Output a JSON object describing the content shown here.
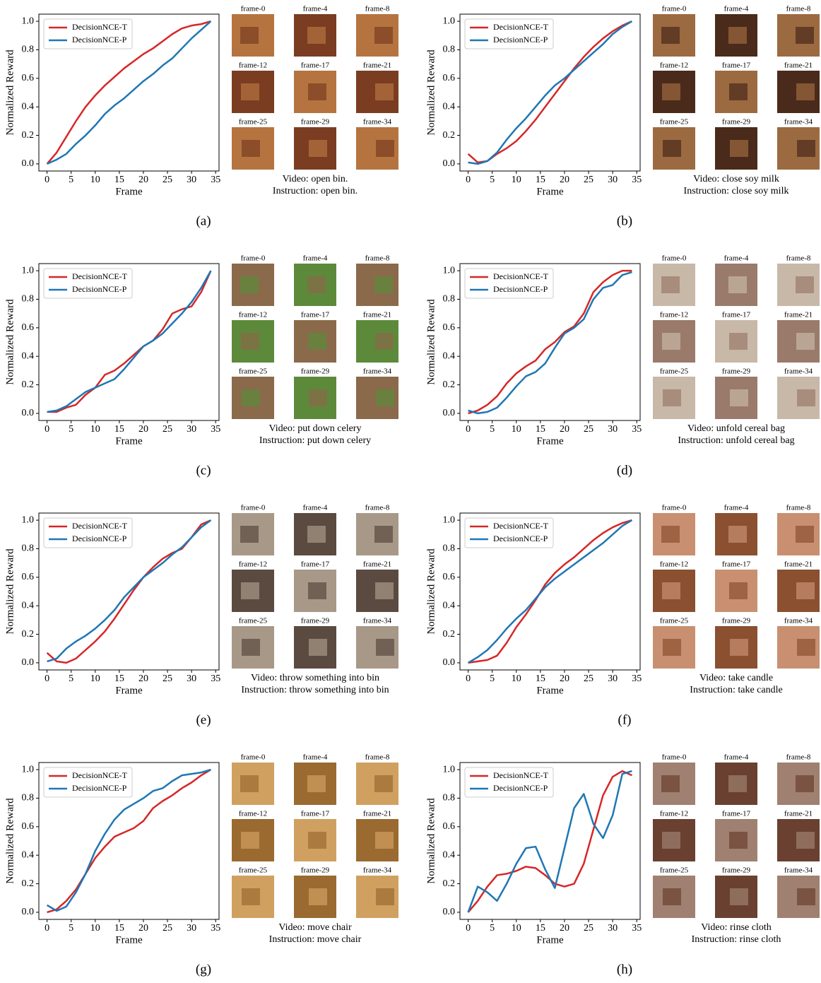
{
  "chart_data": [
    {
      "type": "line",
      "panel_label": "(a)",
      "x_label": "Frame",
      "y_label": "Normalized Reward",
      "x": [
        0,
        2,
        4,
        6,
        8,
        10,
        12,
        14,
        16,
        18,
        20,
        22,
        24,
        26,
        28,
        30,
        32,
        34
      ],
      "series": [
        {
          "name": "DecisionNCE-T",
          "color": "#d62728",
          "values": [
            0,
            0.08,
            0.19,
            0.3,
            0.4,
            0.48,
            0.55,
            0.61,
            0.67,
            0.72,
            0.77,
            0.81,
            0.86,
            0.91,
            0.95,
            0.97,
            0.98,
            1.0
          ]
        },
        {
          "name": "DecisionNCE-P",
          "color": "#1f77b4",
          "values": [
            0,
            0.03,
            0.07,
            0.14,
            0.2,
            0.27,
            0.35,
            0.41,
            0.46,
            0.52,
            0.58,
            0.63,
            0.69,
            0.74,
            0.81,
            0.88,
            0.94,
            1.0
          ]
        }
      ],
      "xlim": [
        -1.7,
        35.7
      ],
      "xticks": [
        0,
        5,
        10,
        15,
        20,
        25,
        30,
        35
      ],
      "ylim": [
        -0.05,
        1.05
      ],
      "yticks": [
        {
          "value": 0,
          "label": "0.0"
        },
        0.2,
        0.4,
        0.6,
        0.8,
        {
          "value": 1,
          "label": "1.0"
        }
      ],
      "legend": "upper left",
      "frame_labels": [
        "frame-0",
        "frame-4",
        "frame-8",
        "frame-12",
        "frame-17",
        "frame-21",
        "frame-25",
        "frame-29",
        "frame-34"
      ],
      "caption_video": "Video: open bin.",
      "caption_instruction": "Instruction: open bin."
    },
    {
      "type": "line",
      "panel_label": "(b)",
      "x_label": "Frame",
      "y_label": "Normalized Reward",
      "x": [
        0,
        2,
        4,
        6,
        8,
        10,
        12,
        14,
        16,
        18,
        20,
        22,
        24,
        26,
        28,
        30,
        32,
        34
      ],
      "series": [
        {
          "name": "DecisionNCE-T",
          "color": "#d62728",
          "values": [
            0.07,
            0.01,
            0.02,
            0.07,
            0.11,
            0.16,
            0.23,
            0.31,
            0.4,
            0.49,
            0.58,
            0.67,
            0.75,
            0.82,
            0.88,
            0.93,
            0.97,
            1.0
          ]
        },
        {
          "name": "DecisionNCE-P",
          "color": "#1f77b4",
          "values": [
            0.01,
            0.0,
            0.02,
            0.08,
            0.17,
            0.25,
            0.32,
            0.4,
            0.48,
            0.55,
            0.6,
            0.66,
            0.72,
            0.78,
            0.84,
            0.91,
            0.96,
            1.0
          ]
        }
      ],
      "xlim": [
        -1.7,
        35.7
      ],
      "xticks": [
        0,
        5,
        10,
        15,
        20,
        25,
        30,
        35
      ],
      "ylim": [
        -0.05,
        1.05
      ],
      "yticks": [
        {
          "value": 0,
          "label": "0.0"
        },
        0.2,
        0.4,
        0.6,
        0.8,
        {
          "value": 1,
          "label": "1.0"
        }
      ],
      "legend": "upper left",
      "frame_labels": [
        "frame-0",
        "frame-4",
        "frame-8",
        "frame-12",
        "frame-17",
        "frame-21",
        "frame-25",
        "frame-29",
        "frame-34"
      ],
      "caption_video": "Video: close soy milk",
      "caption_instruction": "Instruction: close soy milk"
    },
    {
      "type": "line",
      "panel_label": "(c)",
      "x_label": "Frame",
      "y_label": "Normalized Reward",
      "x": [
        0,
        2,
        4,
        6,
        8,
        10,
        12,
        14,
        16,
        18,
        20,
        22,
        24,
        26,
        28,
        30,
        32,
        34
      ],
      "series": [
        {
          "name": "DecisionNCE-T",
          "color": "#d62728",
          "values": [
            0.01,
            0.01,
            0.04,
            0.06,
            0.13,
            0.18,
            0.27,
            0.3,
            0.35,
            0.41,
            0.47,
            0.51,
            0.59,
            0.7,
            0.73,
            0.75,
            0.85,
            1.0
          ]
        },
        {
          "name": "DecisionNCE-P",
          "color": "#1f77b4",
          "values": [
            0.01,
            0.02,
            0.05,
            0.1,
            0.15,
            0.18,
            0.21,
            0.24,
            0.31,
            0.39,
            0.47,
            0.51,
            0.56,
            0.63,
            0.7,
            0.78,
            0.88,
            1.0
          ]
        }
      ],
      "xlim": [
        -1.7,
        35.7
      ],
      "xticks": [
        0,
        5,
        10,
        15,
        20,
        25,
        30,
        35
      ],
      "ylim": [
        -0.05,
        1.05
      ],
      "yticks": [
        {
          "value": 0,
          "label": "0.0"
        },
        0.2,
        0.4,
        0.6,
        0.8,
        {
          "value": 1,
          "label": "1.0"
        }
      ],
      "legend": "upper left",
      "frame_labels": [
        "frame-0",
        "frame-4",
        "frame-8",
        "frame-12",
        "frame-17",
        "frame-21",
        "frame-25",
        "frame-29",
        "frame-34"
      ],
      "caption_video": "Video: put down celery",
      "caption_instruction": "Instruction: put down celery"
    },
    {
      "type": "line",
      "panel_label": "(d)",
      "x_label": "Frame",
      "y_label": "Normalized Reward",
      "x": [
        0,
        2,
        4,
        6,
        8,
        10,
        12,
        14,
        16,
        18,
        20,
        22,
        24,
        26,
        28,
        30,
        32,
        34
      ],
      "series": [
        {
          "name": "DecisionNCE-T",
          "color": "#d62728",
          "values": [
            0.0,
            0.02,
            0.06,
            0.12,
            0.21,
            0.28,
            0.33,
            0.37,
            0.45,
            0.5,
            0.57,
            0.61,
            0.7,
            0.85,
            0.92,
            0.97,
            1.0,
            1.0
          ]
        },
        {
          "name": "DecisionNCE-P",
          "color": "#1f77b4",
          "values": [
            0.02,
            0.0,
            0.01,
            0.04,
            0.11,
            0.19,
            0.26,
            0.29,
            0.35,
            0.46,
            0.56,
            0.6,
            0.66,
            0.8,
            0.88,
            0.9,
            0.97,
            0.99
          ]
        }
      ],
      "xlim": [
        -1.7,
        35.7
      ],
      "xticks": [
        0,
        5,
        10,
        15,
        20,
        25,
        30,
        35
      ],
      "ylim": [
        -0.05,
        1.05
      ],
      "yticks": [
        {
          "value": 0,
          "label": "0.0"
        },
        0.2,
        0.4,
        0.6,
        0.8,
        {
          "value": 1,
          "label": "1.0"
        }
      ],
      "legend": "upper left",
      "frame_labels": [
        "frame-0",
        "frame-4",
        "frame-8",
        "frame-12",
        "frame-17",
        "frame-21",
        "frame-25",
        "frame-29",
        "frame-34"
      ],
      "caption_video": "Video: unfold cereal bag",
      "caption_instruction": "Instruction: unfold cereal bag"
    },
    {
      "type": "line",
      "panel_label": "(e)",
      "x_label": "Frame",
      "y_label": "Normalized Reward",
      "x": [
        0,
        2,
        4,
        6,
        8,
        10,
        12,
        14,
        16,
        18,
        20,
        22,
        24,
        26,
        28,
        30,
        32,
        34
      ],
      "series": [
        {
          "name": "DecisionNCE-T",
          "color": "#d62728",
          "values": [
            0.07,
            0.01,
            0.0,
            0.03,
            0.09,
            0.15,
            0.22,
            0.31,
            0.41,
            0.51,
            0.6,
            0.67,
            0.73,
            0.77,
            0.8,
            0.88,
            0.97,
            1.0
          ]
        },
        {
          "name": "DecisionNCE-P",
          "color": "#1f77b4",
          "values": [
            0.01,
            0.03,
            0.1,
            0.15,
            0.19,
            0.24,
            0.3,
            0.37,
            0.46,
            0.53,
            0.6,
            0.65,
            0.7,
            0.76,
            0.81,
            0.88,
            0.95,
            1.0
          ]
        }
      ],
      "xlim": [
        -1.7,
        35.7
      ],
      "xticks": [
        0,
        5,
        10,
        15,
        20,
        25,
        30,
        35
      ],
      "ylim": [
        -0.05,
        1.05
      ],
      "yticks": [
        {
          "value": 0,
          "label": "0.0"
        },
        0.2,
        0.4,
        0.6,
        0.8,
        {
          "value": 1,
          "label": "1.0"
        }
      ],
      "legend": "upper left",
      "frame_labels": [
        "frame-0",
        "frame-4",
        "frame-8",
        "frame-12",
        "frame-17",
        "frame-21",
        "frame-25",
        "frame-29",
        "frame-34"
      ],
      "caption_video": "Video: throw something into bin",
      "caption_instruction": "Instruction: throw something into bin"
    },
    {
      "type": "line",
      "panel_label": "(f)",
      "x_label": "Frame",
      "y_label": "Normalized Reward",
      "x": [
        0,
        2,
        4,
        6,
        8,
        10,
        12,
        14,
        16,
        18,
        20,
        22,
        24,
        26,
        28,
        30,
        32,
        34
      ],
      "series": [
        {
          "name": "DecisionNCE-T",
          "color": "#d62728",
          "values": [
            0,
            0.01,
            0.02,
            0.05,
            0.14,
            0.25,
            0.34,
            0.44,
            0.55,
            0.63,
            0.69,
            0.74,
            0.8,
            0.86,
            0.91,
            0.95,
            0.98,
            1.0
          ]
        },
        {
          "name": "DecisionNCE-P",
          "color": "#1f77b4",
          "values": [
            0,
            0.04,
            0.09,
            0.16,
            0.24,
            0.31,
            0.37,
            0.45,
            0.53,
            0.59,
            0.64,
            0.69,
            0.74,
            0.79,
            0.84,
            0.9,
            0.96,
            1.0
          ]
        }
      ],
      "xlim": [
        -1.7,
        35.7
      ],
      "xticks": [
        0,
        5,
        10,
        15,
        20,
        25,
        30,
        35
      ],
      "ylim": [
        -0.05,
        1.05
      ],
      "yticks": [
        {
          "value": 0,
          "label": "0.0"
        },
        0.2,
        0.4,
        0.6,
        0.8,
        {
          "value": 1,
          "label": "1.0"
        }
      ],
      "legend": "upper left",
      "frame_labels": [
        "frame-0",
        "frame-4",
        "frame-8",
        "frame-12",
        "frame-17",
        "frame-21",
        "frame-25",
        "frame-29",
        "frame-34"
      ],
      "caption_video": "Video: take candle",
      "caption_instruction": "Instruction: take candle"
    },
    {
      "type": "line",
      "panel_label": "(g)",
      "x_label": "Frame",
      "y_label": "Normalized Reward",
      "x": [
        0,
        2,
        4,
        6,
        8,
        10,
        12,
        14,
        16,
        18,
        20,
        22,
        24,
        26,
        28,
        30,
        32,
        34
      ],
      "series": [
        {
          "name": "DecisionNCE-T",
          "color": "#d62728",
          "values": [
            0.0,
            0.02,
            0.08,
            0.16,
            0.27,
            0.38,
            0.46,
            0.53,
            0.56,
            0.59,
            0.64,
            0.73,
            0.78,
            0.82,
            0.87,
            0.91,
            0.96,
            1.0
          ]
        },
        {
          "name": "DecisionNCE-P",
          "color": "#1f77b4",
          "values": [
            0.05,
            0.01,
            0.04,
            0.14,
            0.27,
            0.43,
            0.55,
            0.65,
            0.72,
            0.76,
            0.8,
            0.85,
            0.87,
            0.92,
            0.96,
            0.97,
            0.98,
            1.0
          ]
        }
      ],
      "xlim": [
        -1.7,
        35.7
      ],
      "xticks": [
        0,
        5,
        10,
        15,
        20,
        25,
        30,
        35
      ],
      "ylim": [
        -0.05,
        1.05
      ],
      "yticks": [
        {
          "value": 0,
          "label": "0.0"
        },
        0.2,
        0.4,
        0.6,
        0.8,
        {
          "value": 1,
          "label": "1.0"
        }
      ],
      "legend": "upper left",
      "frame_labels": [
        "frame-0",
        "frame-4",
        "frame-8",
        "frame-12",
        "frame-17",
        "frame-21",
        "frame-25",
        "frame-29",
        "frame-34"
      ],
      "caption_video": "Video: move chair",
      "caption_instruction": "Instruction: move chair"
    },
    {
      "type": "line",
      "panel_label": "(h)",
      "x_label": "Frame",
      "y_label": "Normalized Reward",
      "x": [
        0,
        2,
        4,
        6,
        8,
        10,
        12,
        14,
        16,
        18,
        20,
        22,
        24,
        26,
        28,
        30,
        32,
        34
      ],
      "series": [
        {
          "name": "DecisionNCE-T",
          "color": "#d62728",
          "values": [
            0.0,
            0.08,
            0.18,
            0.26,
            0.27,
            0.29,
            0.32,
            0.31,
            0.26,
            0.2,
            0.18,
            0.2,
            0.34,
            0.58,
            0.82,
            0.95,
            0.99,
            0.96
          ]
        },
        {
          "name": "DecisionNCE-P",
          "color": "#1f77b4",
          "values": [
            0.0,
            0.18,
            0.14,
            0.08,
            0.2,
            0.34,
            0.45,
            0.46,
            0.3,
            0.17,
            0.45,
            0.73,
            0.83,
            0.62,
            0.52,
            0.68,
            0.97,
            0.99
          ]
        }
      ],
      "xlim": [
        -1.7,
        35.7
      ],
      "xticks": [
        0,
        5,
        10,
        15,
        20,
        25,
        30,
        35
      ],
      "ylim": [
        -0.05,
        1.05
      ],
      "yticks": [
        {
          "value": 0,
          "label": "0.0"
        },
        0.2,
        0.4,
        0.6,
        0.8,
        {
          "value": 1,
          "label": "1.0"
        }
      ],
      "legend": "upper left",
      "frame_labels": [
        "frame-0",
        "frame-4",
        "frame-8",
        "frame-12",
        "frame-17",
        "frame-21",
        "frame-25",
        "frame-29",
        "frame-34"
      ],
      "caption_video": "Video: rinse cloth",
      "caption_instruction": "Instruction: rinse cloth"
    }
  ]
}
